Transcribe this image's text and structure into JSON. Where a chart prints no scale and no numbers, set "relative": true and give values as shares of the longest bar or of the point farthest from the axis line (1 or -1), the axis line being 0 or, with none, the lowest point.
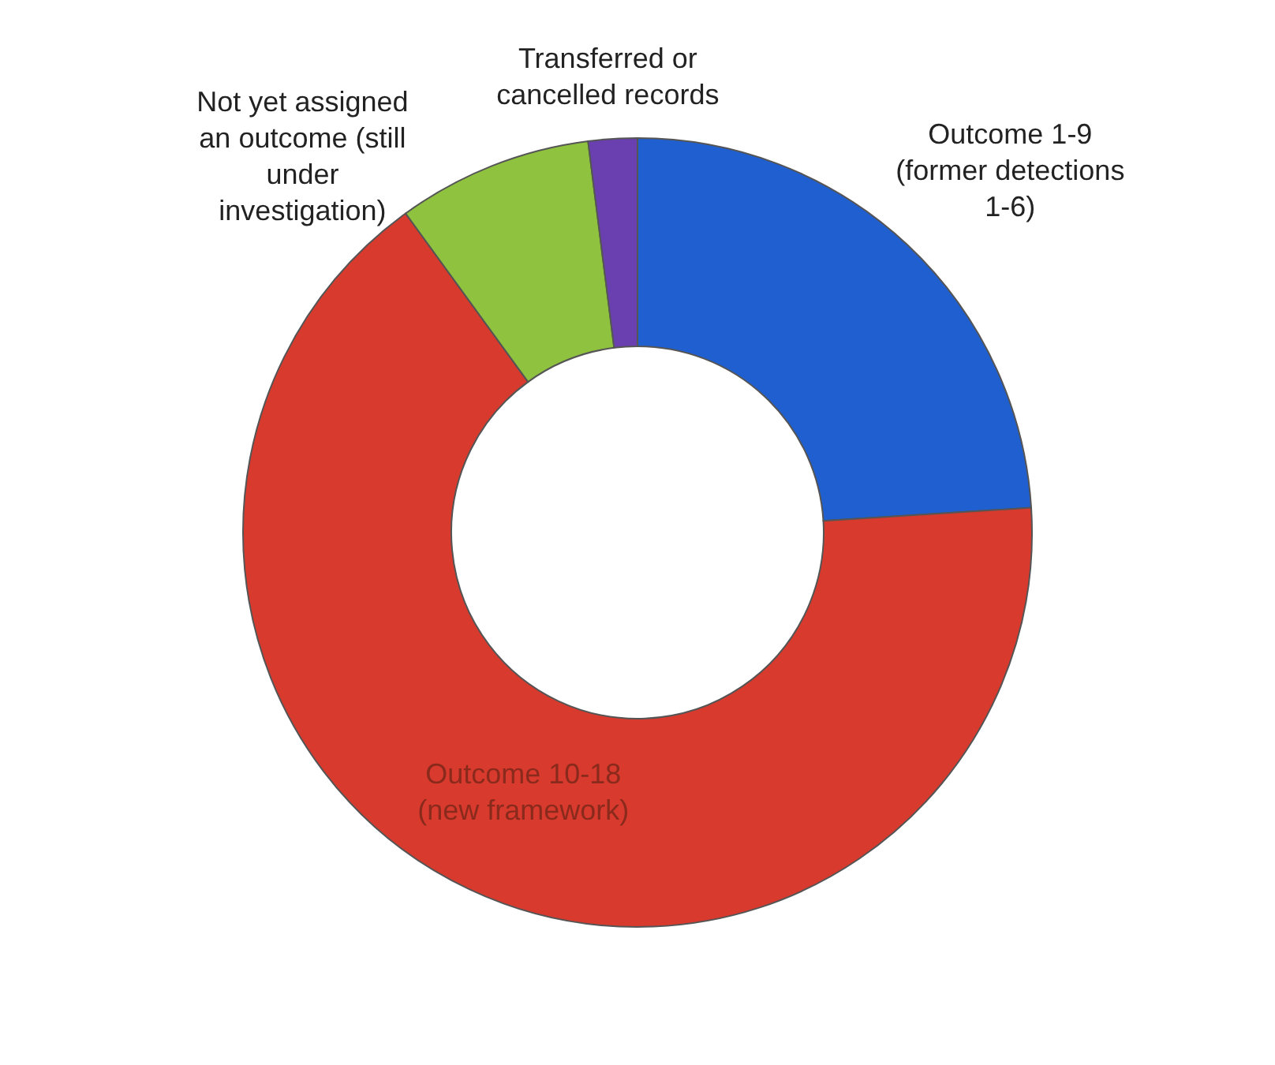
{
  "chart_data": {
    "type": "donut",
    "relative": true,
    "categories": [
      "Outcome 1-9 (former detections 1-6)",
      "Outcome 10-18 (new framework)",
      "Not yet assigned an outcome (still under investigation)",
      "Transferred or cancelled records"
    ],
    "values": [
      24,
      66,
      8,
      2
    ],
    "colors": [
      "#1f5fd0",
      "#d83a2e",
      "#8fc23f",
      "#6a3fb0"
    ]
  }
}
